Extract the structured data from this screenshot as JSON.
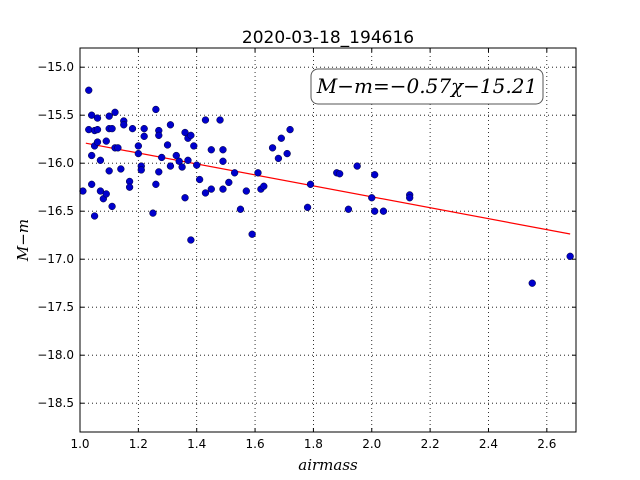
{
  "chart_data": {
    "type": "scatter",
    "title": "2020-03-18_194616",
    "xlabel": "airmass",
    "ylabel": "M−m",
    "xlim": [
      1.0,
      2.7
    ],
    "ylim": [
      -18.8,
      -14.8
    ],
    "y_inverted": true,
    "grid": true,
    "xticks": [
      1.0,
      1.2,
      1.4,
      1.6,
      1.8,
      2.0,
      2.2,
      2.4,
      2.6
    ],
    "xtick_labels": [
      "1.0",
      "1.2",
      "1.4",
      "1.6",
      "1.8",
      "2.0",
      "2.2",
      "2.4",
      "2.6"
    ],
    "yticks": [
      -15.0,
      -15.5,
      -16.0,
      -16.5,
      -17.0,
      -17.5,
      -18.0,
      -18.5
    ],
    "ytick_labels": [
      "−15.0",
      "−15.5",
      "−16.0",
      "−16.5",
      "−17.0",
      "−17.5",
      "−18.0",
      "−18.5"
    ],
    "annotation": "M−m=−0.57χ−15.21",
    "fit": {
      "slope": -0.57,
      "intercept": -15.21,
      "x_range": [
        1.02,
        2.68
      ],
      "color": "#ff0000"
    },
    "point_color": "#0000cc",
    "points": [
      [
        1.01,
        -16.29
      ],
      [
        1.03,
        -15.24
      ],
      [
        1.03,
        -15.65
      ],
      [
        1.04,
        -15.5
      ],
      [
        1.04,
        -15.92
      ],
      [
        1.04,
        -16.22
      ],
      [
        1.05,
        -15.66
      ],
      [
        1.05,
        -15.82
      ],
      [
        1.05,
        -16.55
      ],
      [
        1.06,
        -15.53
      ],
      [
        1.06,
        -15.65
      ],
      [
        1.06,
        -15.78
      ],
      [
        1.07,
        -16.29
      ],
      [
        1.07,
        -15.97
      ],
      [
        1.08,
        -16.37
      ],
      [
        1.09,
        -15.77
      ],
      [
        1.09,
        -16.32
      ],
      [
        1.1,
        -15.64
      ],
      [
        1.1,
        -15.51
      ],
      [
        1.1,
        -16.08
      ],
      [
        1.11,
        -15.64
      ],
      [
        1.11,
        -16.45
      ],
      [
        1.12,
        -15.47
      ],
      [
        1.12,
        -15.84
      ],
      [
        1.13,
        -15.84
      ],
      [
        1.14,
        -16.06
      ],
      [
        1.15,
        -15.56
      ],
      [
        1.15,
        -15.6
      ],
      [
        1.17,
        -16.19
      ],
      [
        1.17,
        -16.25
      ],
      [
        1.18,
        -15.64
      ],
      [
        1.2,
        -15.82
      ],
      [
        1.2,
        -15.9
      ],
      [
        1.21,
        -16.03
      ],
      [
        1.21,
        -16.07
      ],
      [
        1.22,
        -15.64
      ],
      [
        1.22,
        -15.72
      ],
      [
        1.25,
        -16.52
      ],
      [
        1.26,
        -15.44
      ],
      [
        1.26,
        -16.22
      ],
      [
        1.27,
        -15.66
      ],
      [
        1.27,
        -15.71
      ],
      [
        1.27,
        -16.09
      ],
      [
        1.28,
        -15.94
      ],
      [
        1.3,
        -15.81
      ],
      [
        1.31,
        -15.6
      ],
      [
        1.31,
        -16.03
      ],
      [
        1.33,
        -15.92
      ],
      [
        1.34,
        -15.98
      ],
      [
        1.35,
        -16.04
      ],
      [
        1.36,
        -15.68
      ],
      [
        1.36,
        -16.36
      ],
      [
        1.37,
        -15.74
      ],
      [
        1.37,
        -15.97
      ],
      [
        1.38,
        -15.71
      ],
      [
        1.38,
        -16.8
      ],
      [
        1.39,
        -15.82
      ],
      [
        1.4,
        -16.02
      ],
      [
        1.41,
        -16.17
      ],
      [
        1.43,
        -15.55
      ],
      [
        1.43,
        -16.31
      ],
      [
        1.45,
        -15.86
      ],
      [
        1.45,
        -16.27
      ],
      [
        1.48,
        -15.55
      ],
      [
        1.49,
        -15.86
      ],
      [
        1.49,
        -15.98
      ],
      [
        1.49,
        -16.27
      ],
      [
        1.51,
        -16.2
      ],
      [
        1.53,
        -16.1
      ],
      [
        1.55,
        -16.48
      ],
      [
        1.57,
        -16.29
      ],
      [
        1.59,
        -16.74
      ],
      [
        1.61,
        -16.1
      ],
      [
        1.62,
        -16.27
      ],
      [
        1.63,
        -16.24
      ],
      [
        1.66,
        -15.84
      ],
      [
        1.68,
        -15.95
      ],
      [
        1.69,
        -15.74
      ],
      [
        1.71,
        -15.9
      ],
      [
        1.72,
        -15.65
      ],
      [
        1.78,
        -16.46
      ],
      [
        1.79,
        -16.22
      ],
      [
        1.88,
        -16.1
      ],
      [
        1.89,
        -16.11
      ],
      [
        1.92,
        -16.48
      ],
      [
        1.95,
        -16.03
      ],
      [
        2.0,
        -16.36
      ],
      [
        2.01,
        -16.12
      ],
      [
        2.01,
        -16.5
      ],
      [
        2.04,
        -16.5
      ],
      [
        2.13,
        -16.33
      ],
      [
        2.13,
        -16.36
      ],
      [
        2.55,
        -17.25
      ],
      [
        2.68,
        -16.97
      ]
    ]
  }
}
